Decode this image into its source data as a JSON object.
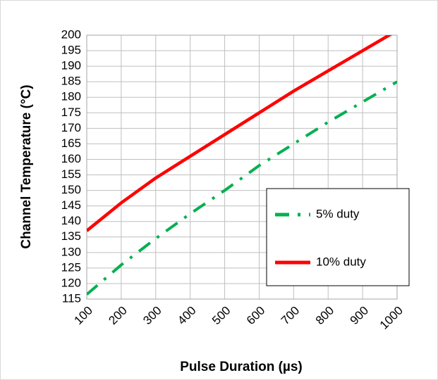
{
  "chart_data": {
    "type": "line",
    "xlabel": "Pulse Duration (µs)",
    "ylabel": "Channel Temperature (°C)",
    "x": [
      100,
      200,
      300,
      400,
      500,
      600,
      700,
      800,
      900,
      1000
    ],
    "series": [
      {
        "name": "5% duty",
        "color": "#00b050",
        "style": "dashdot",
        "values": [
          116.5,
          126,
          134.5,
          142.5,
          150,
          158,
          165,
          172,
          178.5,
          185
        ]
      },
      {
        "name": "10% duty",
        "color": "#ff0000",
        "style": "solid",
        "values": [
          137,
          146,
          154,
          161,
          168,
          175,
          182,
          188.5,
          195,
          201.5
        ]
      }
    ],
    "xlim": [
      100,
      1000
    ],
    "ylim": [
      115,
      200
    ],
    "xticks": [
      100,
      200,
      300,
      400,
      500,
      600,
      700,
      800,
      900,
      1000
    ],
    "yticks": [
      115,
      120,
      125,
      130,
      135,
      140,
      145,
      150,
      155,
      160,
      165,
      170,
      175,
      180,
      185,
      190,
      195,
      200
    ],
    "grid": true,
    "legend": "lower right"
  }
}
